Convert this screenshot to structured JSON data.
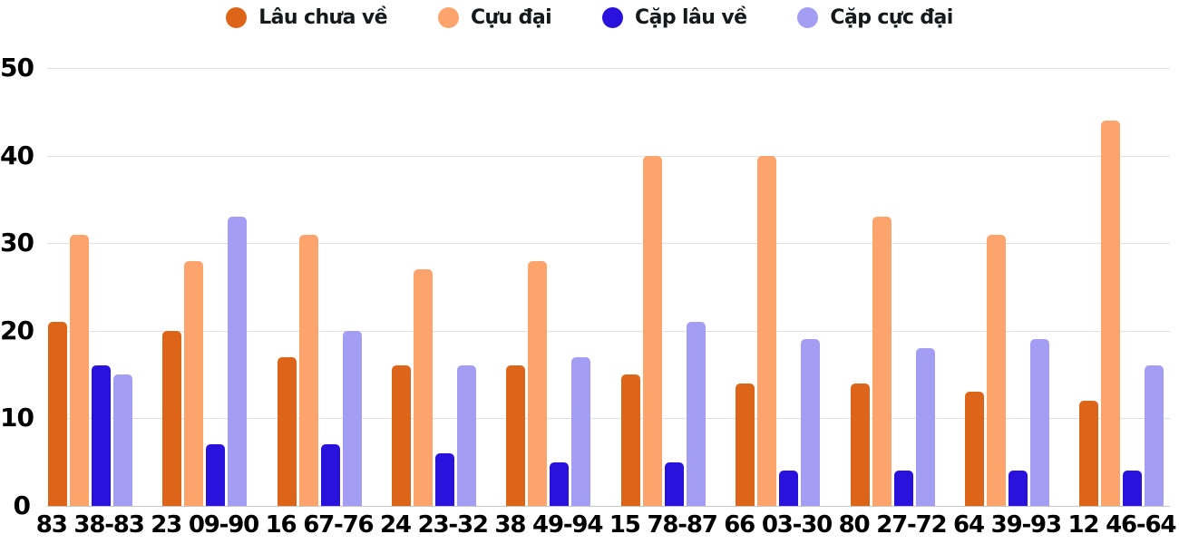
{
  "chart_data": {
    "type": "bar",
    "title": "",
    "xlabel": "",
    "ylabel": "",
    "categories": [
      "83 38-83",
      "23 09-90",
      "16 67-76",
      "24 23-32",
      "38 49-94",
      "15 78-87",
      "66 03-30",
      "80 27-72",
      "64 39-93",
      "12 46-64"
    ],
    "series": [
      {
        "name": "Lâu chưa về",
        "color": "#dd651a",
        "values": [
          21,
          20,
          17,
          16,
          16,
          15,
          14,
          14,
          13,
          12
        ]
      },
      {
        "name": "Cựu đại",
        "color": "#fca46c",
        "values": [
          31,
          28,
          31,
          27,
          28,
          40,
          40,
          33,
          31,
          44
        ]
      },
      {
        "name": "Cặp lâu về",
        "color": "#2a12dd",
        "values": [
          16,
          7,
          7,
          6,
          5,
          5,
          4,
          4,
          4,
          4
        ]
      },
      {
        "name": "Cặp cực đại",
        "color": "#a39df4",
        "values": [
          15,
          33,
          20,
          16,
          17,
          21,
          19,
          18,
          19,
          16
        ]
      }
    ],
    "ylim": [
      0,
      50
    ],
    "yticks": [
      0,
      10,
      20,
      30,
      40,
      50
    ],
    "grid": true,
    "legend_position": "top",
    "colors": {
      "gridline": "#e2e2e2",
      "zero_line": "#c8c8c8",
      "tick_text": "#000000",
      "legend_text": "#17181c",
      "background": "#ffffff"
    }
  }
}
